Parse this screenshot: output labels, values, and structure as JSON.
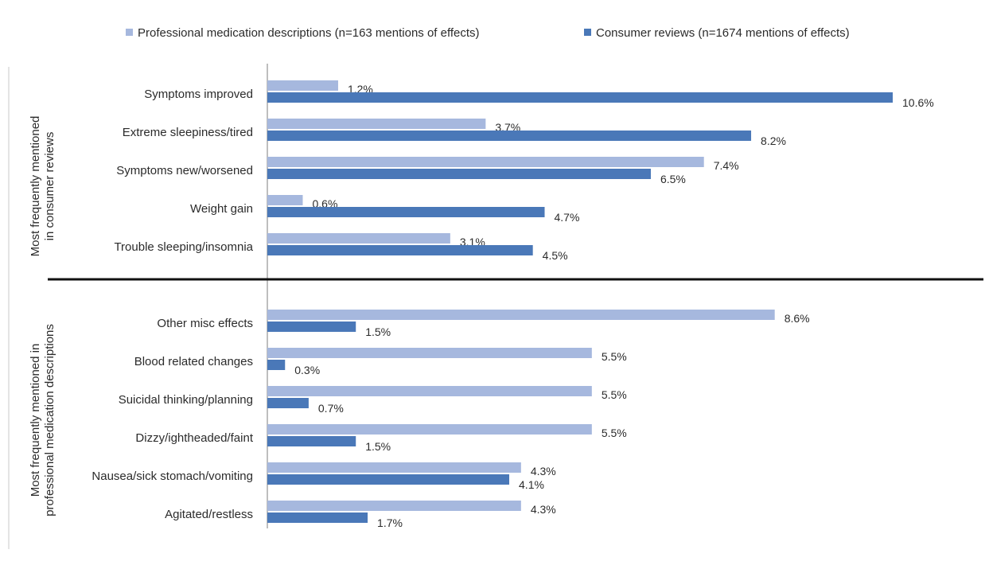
{
  "chart_data": {
    "type": "bar",
    "orientation": "horizontal",
    "legend": "top",
    "grid": false,
    "xlim": [
      0,
      10.6
    ],
    "series": [
      {
        "name": "Professional medication descriptions (n=163 mentions of effects)",
        "color": "#a6b8de"
      },
      {
        "name": "Consumer reviews (n=1674 mentions of effects)",
        "color": "#4a78b8"
      }
    ],
    "groups": [
      {
        "label": "Most frequently mentioned in consumer reviews",
        "categories": [
          {
            "name": "Symptoms improved",
            "values": [
              1.2,
              10.6
            ],
            "labels": [
              "1.2%",
              "10.6%"
            ]
          },
          {
            "name": "Extreme sleepiness/tired",
            "values": [
              3.7,
              8.2
            ],
            "labels": [
              "3.7%",
              "8.2%"
            ]
          },
          {
            "name": "Symptoms new/worsened",
            "values": [
              7.4,
              6.5
            ],
            "labels": [
              "7.4%",
              "6.5%"
            ]
          },
          {
            "name": "Weight gain",
            "values": [
              0.6,
              4.7
            ],
            "labels": [
              "0.6%",
              "4.7%"
            ]
          },
          {
            "name": "Trouble sleeping/insomnia",
            "values": [
              3.1,
              4.5
            ],
            "labels": [
              "3.1%",
              "4.5%"
            ]
          }
        ]
      },
      {
        "label": "Most frequently mentioned in professional medication descriptions",
        "categories": [
          {
            "name": "Other misc effects",
            "values": [
              8.6,
              1.5
            ],
            "labels": [
              "8.6%",
              "1.5%"
            ]
          },
          {
            "name": "Blood related changes",
            "values": [
              5.5,
              0.3
            ],
            "labels": [
              "5.5%",
              "0.3%"
            ]
          },
          {
            "name": "Suicidal thinking/planning",
            "values": [
              5.5,
              0.7
            ],
            "labels": [
              "5.5%",
              "0.7%"
            ]
          },
          {
            "name": "Dizzy/ightheaded/faint",
            "values": [
              5.5,
              1.5
            ],
            "labels": [
              "5.5%",
              "1.5%"
            ]
          },
          {
            "name": "Nausea/sick stomach/vomiting",
            "values": [
              4.3,
              4.1
            ],
            "labels": [
              "4.3%",
              "4.1%"
            ]
          },
          {
            "name": "Agitated/restless",
            "values": [
              4.3,
              1.7
            ],
            "labels": [
              "4.3%",
              "1.7%"
            ]
          }
        ]
      }
    ]
  }
}
